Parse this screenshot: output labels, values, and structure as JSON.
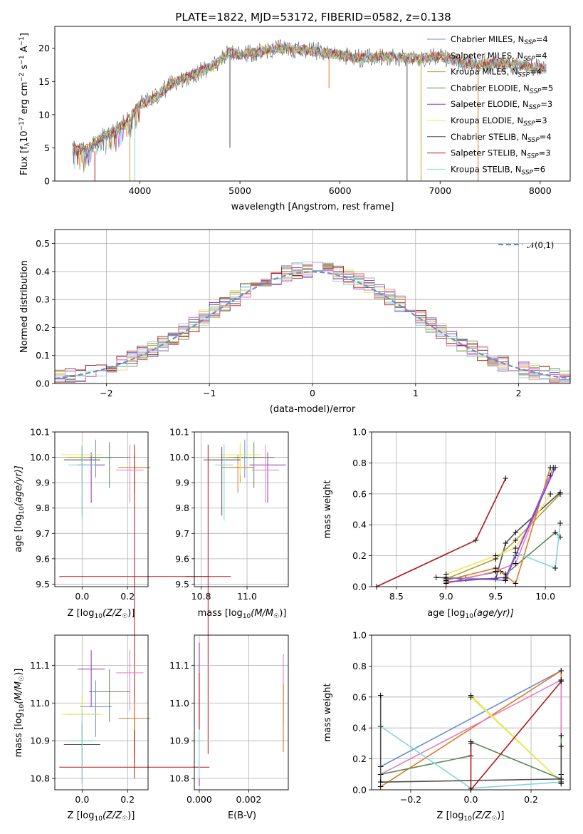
{
  "title": "PLATE=1822, MJD=53172, FIBERID=0582, z=0.138",
  "colors": {
    "chabrier_miles": "#6a8fd0",
    "salpeter_miles": "#e07820",
    "kroupa_miles": "#b8a030",
    "chabrier_elodie": "#5a8a5a",
    "salpeter_elodie": "#9a30c0",
    "kroupa_elodie": "#e8e860",
    "chabrier_stelib": "#505050",
    "salpeter_stelib": "#b01818",
    "kroupa_stelib": "#80d8e0",
    "pink": "#e080c0",
    "gaussian": "#6a8fd0"
  },
  "chart_data": [
    {
      "id": "spectrum",
      "type": "line",
      "title": "PLATE=1822, MJD=53172, FIBERID=0582, z=0.138",
      "xlabel": "wavelength [Angstrom, rest frame]",
      "ylabel": "Flux [f",
      "ylabel_full": "Flux [fλ10⁻¹⁷ erg cm⁻² s⁻¹ A⁻¹]",
      "xlim": [
        3150,
        8300
      ],
      "ylim": [
        0,
        23.3
      ],
      "xticks": [
        "4000",
        "5000",
        "6000",
        "7000",
        "8000"
      ],
      "yticks": [
        "0",
        "5",
        "10",
        "15",
        "20"
      ],
      "legend": [
        "Chabrier MILES, N_SSP=4",
        "Salpeter MILES, N_SSP=4",
        "Kroupa MILES, N_SSP=4",
        "Chabrier ELODIE, N_SSP=5",
        "Salpeter ELODIE, N_SSP=3",
        "Kroupa ELODIE, N_SSP=3",
        "Chabrier STELIB, N_SSP=4",
        "Salpeter STELIB, N_SSP=3",
        "Kroupa STELIB, N_SSP=6"
      ],
      "legend_placement": "upper-right",
      "x": [
        3330,
        3450,
        3600,
        3750,
        3900,
        4000,
        4150,
        4300,
        4450,
        4600,
        4750,
        4900,
        5000,
        5200,
        5400,
        5600,
        5800,
        6000,
        6200,
        6400,
        6600,
        6800,
        7000,
        7200,
        7400,
        7600,
        7800,
        8000,
        8060
      ],
      "y": [
        5.0,
        4.5,
        6.5,
        7.5,
        9.5,
        11.5,
        12.5,
        14.5,
        15.5,
        16.5,
        17.5,
        19.5,
        19.0,
        19.5,
        20.0,
        19.8,
        19.5,
        19.0,
        18.5,
        18.8,
        18.6,
        18.5,
        18.8,
        17.8,
        17.5,
        17.8,
        17.5,
        17.0,
        16.8
      ]
    },
    {
      "id": "residuals",
      "type": "bar",
      "xlabel": "(data-model)/error",
      "ylabel": "Normed distribution",
      "xlim": [
        -2.5,
        2.5
      ],
      "ylim": [
        0,
        0.55
      ],
      "xticks": [
        "−2",
        "−1",
        "0",
        "1",
        "2"
      ],
      "yticks": [
        "0.0",
        "0.1",
        "0.2",
        "0.3",
        "0.4",
        "0.5"
      ],
      "legend": [
        "𝒩(0,1)"
      ],
      "bin_width": 0.1,
      "bin_start": -2.5,
      "values": [
        0.02,
        0.03,
        0.04,
        0.05,
        0.06,
        0.07,
        0.08,
        0.1,
        0.11,
        0.13,
        0.15,
        0.17,
        0.19,
        0.21,
        0.23,
        0.26,
        0.28,
        0.3,
        0.32,
        0.34,
        0.36,
        0.38,
        0.4,
        0.42,
        0.47,
        0.49,
        0.44,
        0.41,
        0.38,
        0.4,
        0.39,
        0.37,
        0.35,
        0.34,
        0.3,
        0.28,
        0.25,
        0.22,
        0.2,
        0.18,
        0.16,
        0.14,
        0.12,
        0.1,
        0.08,
        0.07,
        0.06,
        0.05,
        0.04,
        0.03
      ]
    },
    {
      "id": "age_vs_Z",
      "type": "scatter",
      "xlabel": "Z [log",
      "xlabel_full": "Z [log₁₀(Z/Z☉)]",
      "ylabel": "age  [log",
      "ylabel_full": "age  [log₁₀(age/yr)]",
      "xlim": [
        -0.12,
        0.29
      ],
      "ylim": [
        9.49,
        10.1
      ],
      "xticks": [
        "0.0",
        "0.2"
      ],
      "yticks": [
        "9.5",
        "9.6",
        "9.7",
        "9.8",
        "9.9",
        "10.0",
        "10.1"
      ]
    },
    {
      "id": "age_vs_mass",
      "type": "scatter",
      "xlabel": "mass [log",
      "xlabel_full": "mass [log₁₀(M/M☉)]",
      "xlim": [
        10.77,
        11.18
      ],
      "ylim": [
        9.49,
        10.1
      ],
      "xticks": [
        "10.8",
        "11.0"
      ],
      "yticks": [
        "9.5",
        "9.6",
        "9.7",
        "9.8",
        "9.9",
        "10.0",
        "10.1"
      ]
    },
    {
      "id": "mass_weight_vs_age",
      "type": "line",
      "xlabel": "age  [log",
      "xlabel_full": "age  [log₁₀(age/yr)]",
      "ylabel": "mass weight",
      "xlim": [
        8.25,
        10.25
      ],
      "ylim": [
        0,
        1
      ],
      "xticks": [
        "8.5",
        "9.0",
        "9.5",
        "10.0"
      ],
      "yticks": [
        "0.0",
        "0.2",
        "0.4",
        "0.6",
        "0.8",
        "1.0"
      ]
    },
    {
      "id": "mass_vs_Z",
      "type": "scatter",
      "xlabel": "Z [log",
      "xlabel_full": "Z [log₁₀(Z/Z☉)]",
      "ylabel": "mass [log",
      "ylabel_full": "mass [log₁₀(M/M☉)]",
      "xlim": [
        -0.12,
        0.29
      ],
      "ylim": [
        10.77,
        11.18
      ],
      "xticks": [
        "0.0",
        "0.2"
      ],
      "yticks": [
        "10.8",
        "10.9",
        "11.0",
        "11.1"
      ]
    },
    {
      "id": "mass_vs_ebv",
      "type": "scatter",
      "xlabel": "E(B-V)",
      "xlim": [
        -0.0002,
        0.0036
      ],
      "ylim": [
        10.77,
        11.18
      ],
      "xticks": [
        "0.000",
        "0.002"
      ],
      "yticks": [
        "10.8",
        "10.9",
        "11.0",
        "11.1"
      ]
    },
    {
      "id": "mass_weight_vs_Z",
      "type": "line",
      "xlabel": "Z [log",
      "xlabel_full": "Z [log₁₀(Z/Z☉)]",
      "ylabel": "mass weight",
      "xlim": [
        -0.33,
        0.33
      ],
      "ylim": [
        0,
        1
      ],
      "xticks": [
        "−0.2",
        "0.0",
        "0.2"
      ],
      "yticks": [
        "0.0",
        "0.2",
        "0.4",
        "0.6",
        "0.8",
        "1.0"
      ]
    }
  ]
}
